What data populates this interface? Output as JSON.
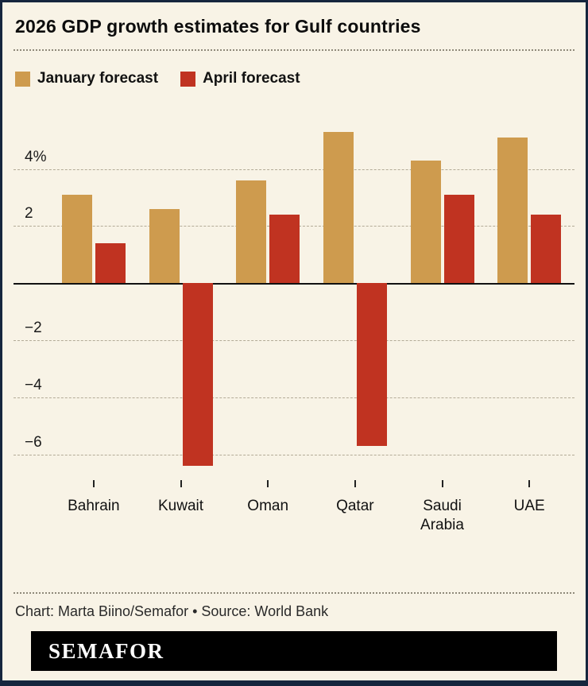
{
  "title": "2026 GDP growth estimates for Gulf countries",
  "footer": {
    "credit": "Chart: Marta Biino/Semafor • Source: World Bank",
    "logo": "SEMAFOR"
  },
  "colors": {
    "background": "#f8f3e6",
    "border": "#16263e",
    "january": "#ce9b4e",
    "april": "#c03321"
  },
  "chart_data": {
    "type": "bar",
    "title": "2026 GDP growth estimates for Gulf countries",
    "categories": [
      "Bahrain",
      "Kuwait",
      "Oman",
      "Qatar",
      "Saudi Arabia",
      "UAE"
    ],
    "series": [
      {
        "name": "January forecast",
        "color": "#ce9b4e",
        "values": [
          3.1,
          2.6,
          3.6,
          5.3,
          4.3,
          5.1
        ]
      },
      {
        "name": "April forecast",
        "color": "#c03321",
        "values": [
          1.4,
          -6.4,
          2.4,
          -5.7,
          3.1,
          2.4
        ]
      }
    ],
    "xlabel": "",
    "ylabel": "",
    "ylim": [
      -6.9,
      5.8
    ],
    "yticks": [
      {
        "value": 4,
        "label": "4%"
      },
      {
        "value": 2,
        "label": "2"
      },
      {
        "value": 0,
        "label": ""
      },
      {
        "value": -2,
        "label": "−2"
      },
      {
        "value": -4,
        "label": "−4"
      },
      {
        "value": -6,
        "label": "−6"
      }
    ],
    "grid": "dashed-horizontal",
    "legend_position": "top"
  }
}
